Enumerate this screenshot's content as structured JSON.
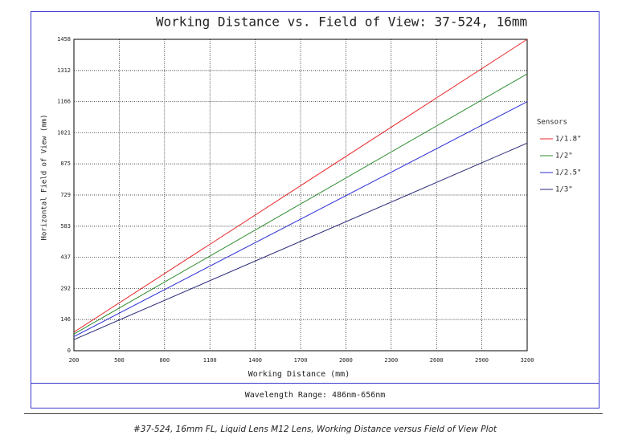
{
  "chart_data": {
    "type": "line",
    "title": "Working Distance vs. Field of View: 37-524, 16mm",
    "xlabel": "Working Distance (mm)",
    "ylabel": "Horizontal Field of View (mm)",
    "x": [
      200,
      3200
    ],
    "series": [
      {
        "name": "1/1.8\"",
        "color": "#e8292b",
        "values": [
          87,
          1458
        ]
      },
      {
        "name": "1/2\"",
        "color": "#2e8b2e",
        "values": [
          78,
          1296
        ]
      },
      {
        "name": "1/2.5\"",
        "color": "#2b2bd6",
        "values": [
          66,
          1166
        ]
      },
      {
        "name": "1/3\"",
        "color": "#2a2a7a",
        "values": [
          52,
          972
        ]
      }
    ],
    "xlim": [
      200,
      3200
    ],
    "ylim": [
      0,
      1458
    ],
    "xticks": [
      200,
      500,
      800,
      1100,
      1400,
      1700,
      2000,
      2300,
      2600,
      2900,
      3200
    ],
    "yticks": [
      0,
      146,
      292,
      437,
      583,
      729,
      875,
      1021,
      1166,
      1312,
      1458
    ],
    "grid": true,
    "legend_title": "Sensors",
    "footer": "Wavelength Range: 486nm-656nm"
  },
  "caption": "#37-524, 16mm FL, Liquid Lens M12 Lens, Working Distance versus Field of View Plot"
}
